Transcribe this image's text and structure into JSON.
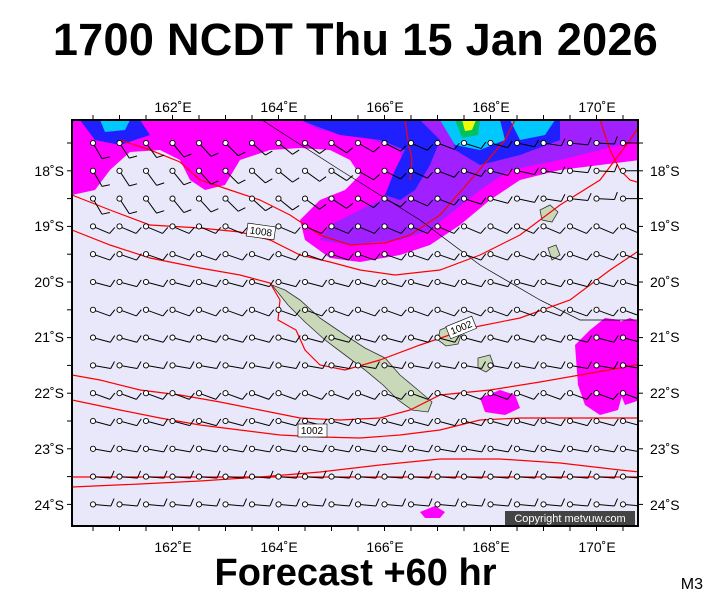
{
  "title": "1700 NCDT Thu 15 Jan 2026",
  "subtitle": "Forecast +60 hr",
  "model": "M3",
  "copyright": "Copyright metvuw.com",
  "lon_ticks": [
    "162˚E",
    "164˚E",
    "166˚E",
    "168˚E",
    "170˚E"
  ],
  "lat_ticks": [
    "18˚S",
    "19˚S",
    "20˚S",
    "21˚S",
    "22˚S",
    "23˚S",
    "24˚S"
  ],
  "isobar_labels": [
    "1008",
    "1002",
    "1002"
  ],
  "colors": {
    "background": "#e8e8fa",
    "isobar": "#ff0000",
    "rain_light": "#ff00ff",
    "rain_medium": "#8a00ff",
    "rain_heavy": "#0000ff",
    "rain_cyan": "#00e0ff",
    "rain_green": "#00c060",
    "rain_yellow": "#f0ff00",
    "land": "#c8d8b8"
  }
}
